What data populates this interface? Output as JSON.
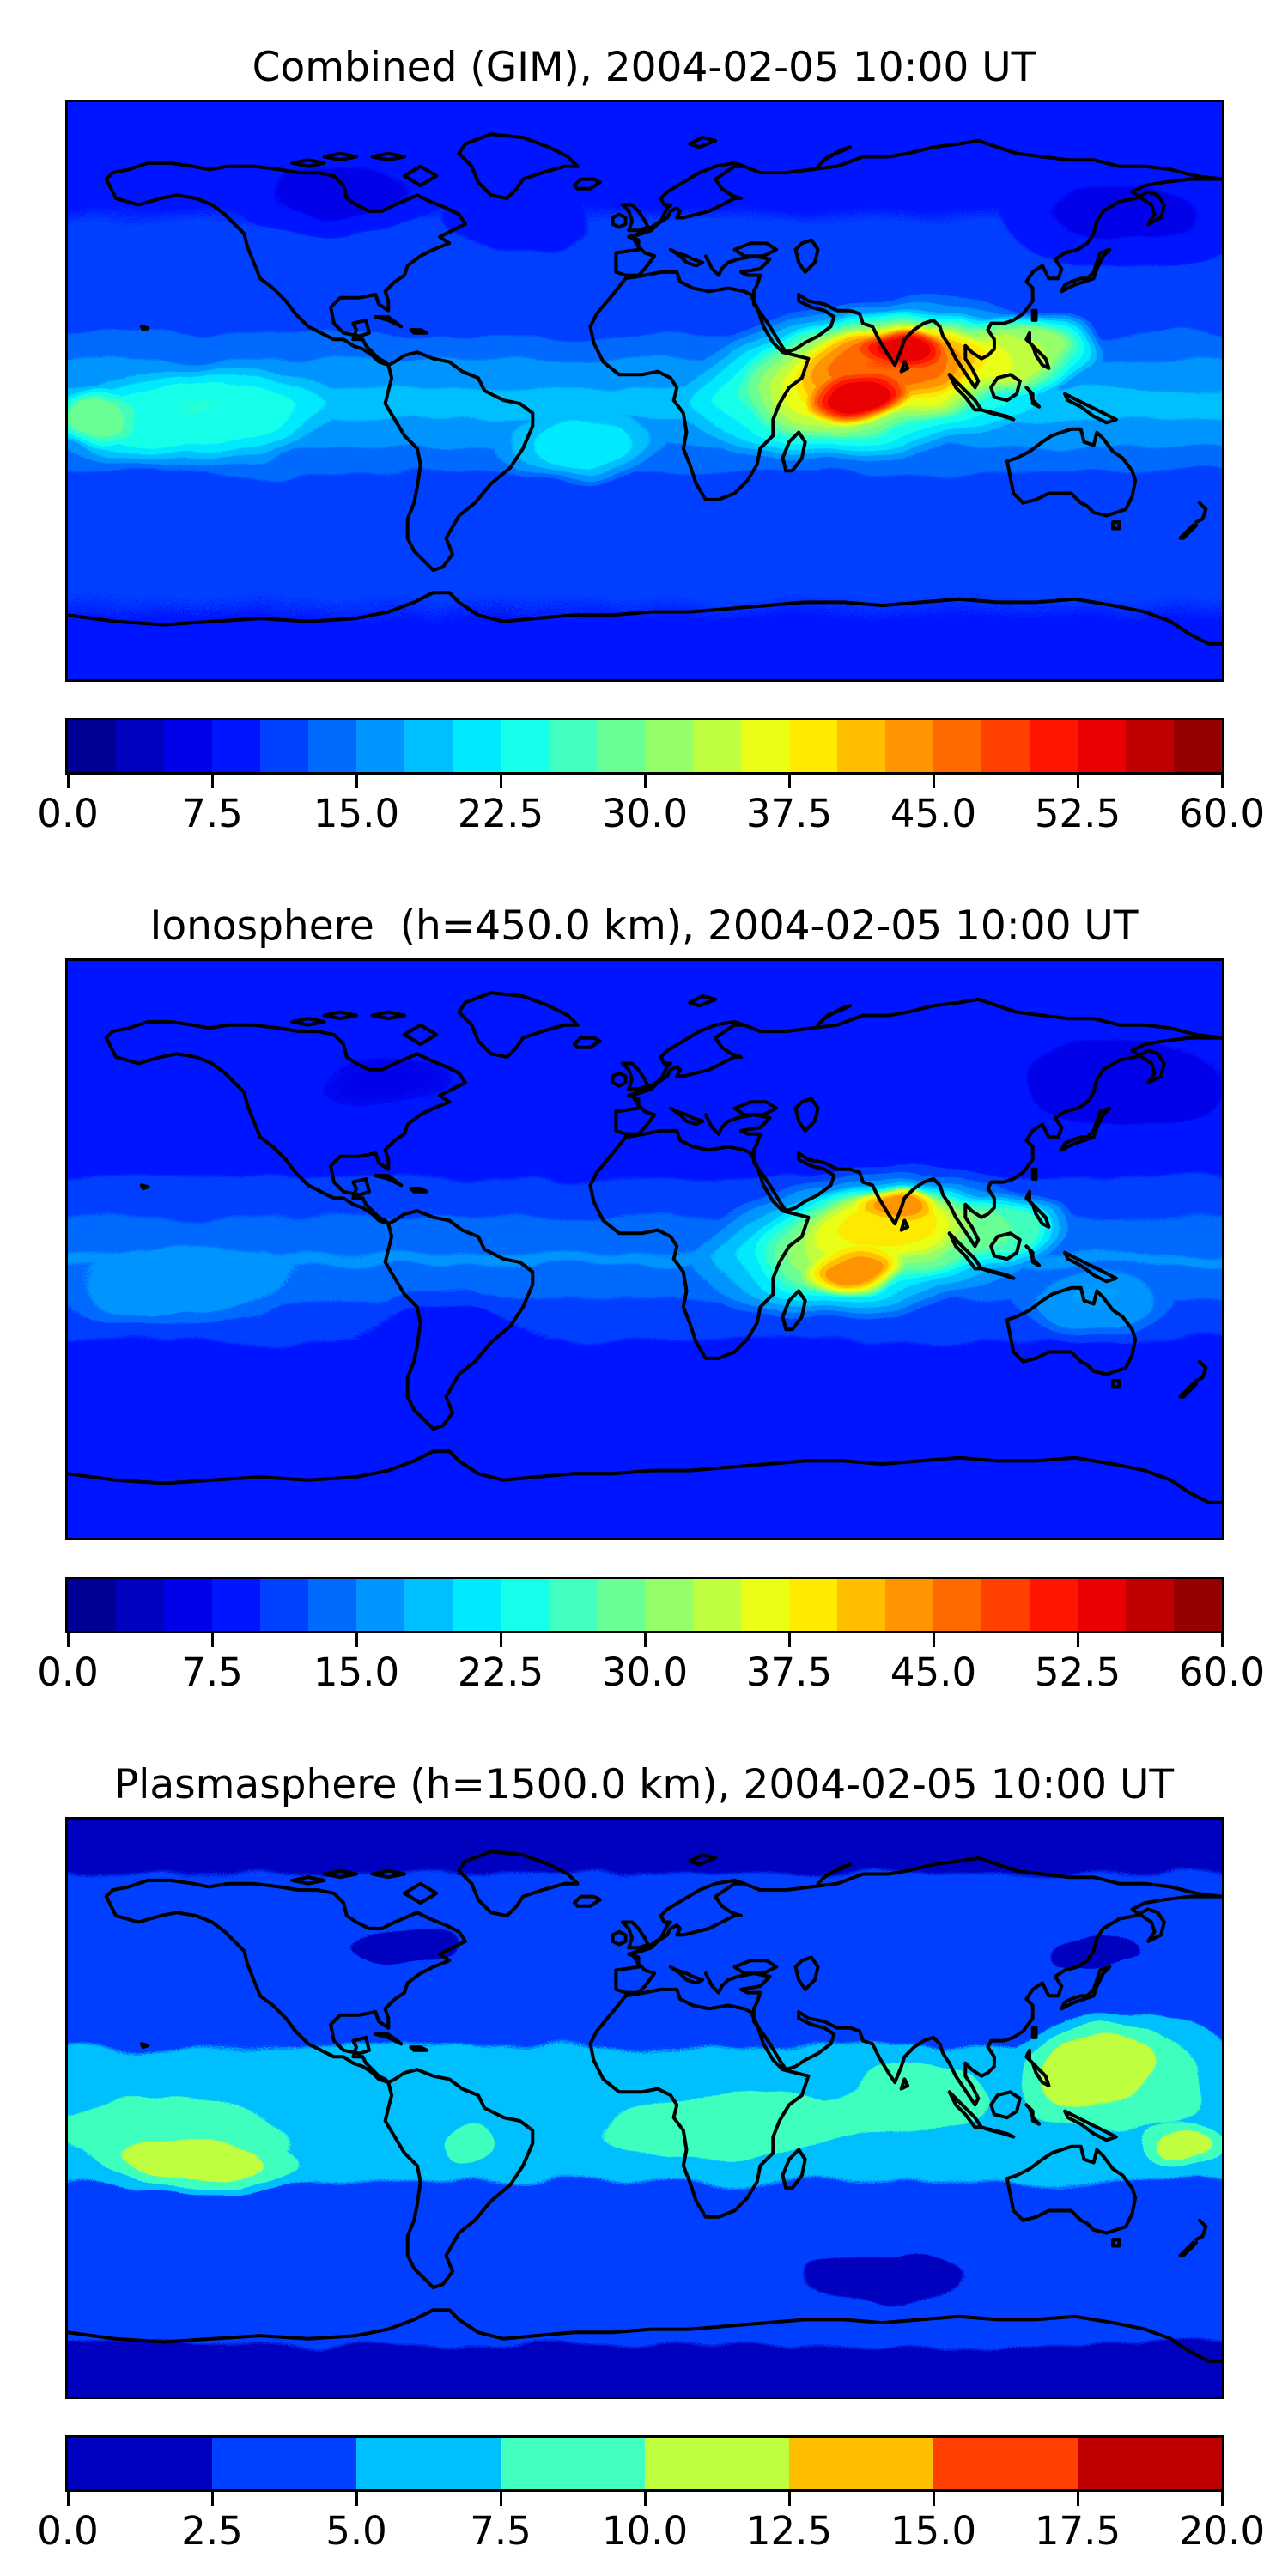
{
  "figure": {
    "background_color": "#ffffff",
    "coastline_color": "#000000",
    "colormap": "jet",
    "projection": "equirectangular world map (-180..180 lon, -90..90 lat), coastlines only, no axis ticks"
  },
  "panels": [
    {
      "id": "combined",
      "title": "Combined (GIM), 2004-02-05 10:00 UT",
      "colorbar": {
        "vmin": 0.0,
        "vmax": 60.0,
        "n_segments": 24,
        "tick_labels": [
          "0.0",
          "7.5",
          "15.0",
          "22.5",
          "30.0",
          "37.5",
          "45.0",
          "52.5",
          "60.0"
        ],
        "segment_colors": [
          "#000095",
          "#0000BF",
          "#0000EA",
          "#0015FF",
          "#0040FF",
          "#006AFF",
          "#0095FF",
          "#00BFFF",
          "#00EAFF",
          "#15FFEA",
          "#40FFBF",
          "#6AFF95",
          "#95FF6A",
          "#BFFF40",
          "#EAFF15",
          "#FFEA00",
          "#FFBF00",
          "#FF9500",
          "#FF6A00",
          "#FF4000",
          "#FF1500",
          "#EA0000",
          "#BF0000",
          "#950000"
        ]
      }
    },
    {
      "id": "ionosphere",
      "title": "Ionosphere  (h=450.0 km), 2004-02-05 10:00 UT",
      "colorbar": {
        "vmin": 0.0,
        "vmax": 60.0,
        "n_segments": 24,
        "tick_labels": [
          "0.0",
          "7.5",
          "15.0",
          "22.5",
          "30.0",
          "37.5",
          "45.0",
          "52.5",
          "60.0"
        ],
        "segment_colors": [
          "#000095",
          "#0000BF",
          "#0000EA",
          "#0015FF",
          "#0040FF",
          "#006AFF",
          "#0095FF",
          "#00BFFF",
          "#00EAFF",
          "#15FFEA",
          "#40FFBF",
          "#6AFF95",
          "#95FF6A",
          "#BFFF40",
          "#EAFF15",
          "#FFEA00",
          "#FFBF00",
          "#FF9500",
          "#FF6A00",
          "#FF4000",
          "#FF1500",
          "#EA0000",
          "#BF0000",
          "#950000"
        ]
      }
    },
    {
      "id": "plasmasphere",
      "title": "Plasmasphere (h=1500.0 km), 2004-02-05 10:00 UT",
      "colorbar": {
        "vmin": 0.0,
        "vmax": 20.0,
        "n_segments": 8,
        "tick_labels": [
          "0.0",
          "2.5",
          "5.0",
          "7.5",
          "10.0",
          "12.5",
          "15.0",
          "17.5",
          "20.0"
        ],
        "segment_colors": [
          "#0000BF",
          "#0040FF",
          "#00BFFF",
          "#40FFBF",
          "#BFFF40",
          "#FFBF00",
          "#FF4000",
          "#BF0000"
        ]
      }
    }
  ],
  "chart_data": [
    {
      "type": "heatmap",
      "title": "Combined (GIM), 2004-02-05 10:00 UT",
      "colormap": "jet",
      "value_range": [
        0.0,
        60.0
      ],
      "contour_interval": 2.5,
      "colorbar_ticks": [
        0.0,
        7.5,
        15.0,
        22.5,
        30.0,
        37.5,
        45.0,
        52.5,
        60.0
      ],
      "legend_position": "horizontal colorbar below map",
      "max_value_approx": 57.5,
      "max_region": "southern India and equatorial Indian Ocean (~60-95E, 15S-18N), red core",
      "secondary_features": [
        "orange/yellow plume spanning North Africa to Southeast Asia (20E-130E)",
        "teal/green S-shaped enhancement in central-eastern Pacific (180W-100W, 25S-5N), ~22-30",
        "green/cyan patch in South Atlantic (~15-22)",
        "dark blue minima (<7.5) over northern Canada and northeast Asia"
      ],
      "min_value_approx": 5.0
    },
    {
      "type": "heatmap",
      "title": "Ionosphere  (h=450.0 km), 2004-02-05 10:00 UT",
      "colormap": "jet",
      "value_range": [
        0.0,
        60.0
      ],
      "contour_interval": 2.5,
      "colorbar_ticks": [
        0.0,
        7.5,
        15.0,
        22.5,
        30.0,
        37.5,
        45.0,
        52.5,
        60.0
      ],
      "legend_position": "horizontal colorbar below map",
      "max_value_approx": 45.0,
      "max_region": "two orange cores: over India (~79E, 14N) and equatorial Indian Ocean (~66E, 7S)",
      "secondary_features": [
        "yellow/green halo over Africa-Indian Ocean-Southeast Asia",
        "light blue streaks in southeast Pacific (~15-20)",
        "darkest blues (<5) over northeast Asia / northwest Pacific",
        "dark blue patch over eastern North America and over southern South America"
      ],
      "min_value_approx": 2.5
    },
    {
      "type": "heatmap",
      "title": "Plasmasphere (h=1500.0 km), 2004-02-05 10:00 UT",
      "colormap": "jet",
      "value_range": [
        0.0,
        20.0
      ],
      "contour_interval": 2.5,
      "colorbar_ticks": [
        0.0,
        2.5,
        5.0,
        7.5,
        10.0,
        12.5,
        15.0,
        17.5,
        20.0
      ],
      "legend_position": "horizontal colorbar below map",
      "max_value_approx": 12.5,
      "max_region": "yellow-green blobs (10-12.5): central South Pacific (~145W, 17S) and western Pacific/Philippines-Japan (~140E, 12N)",
      "secondary_features": [
        "broad tropical band of 7.5-10 (spring green) circling the globe, interrupted near South America",
        "cyan band 5-7.5 on band flanks; small green patch over Brazil",
        "navy minima (<2.5) over both polar caps, dipping equatorward over N America, E Asia and S Indian Ocean"
      ],
      "min_value_approx": 1.0
    }
  ]
}
